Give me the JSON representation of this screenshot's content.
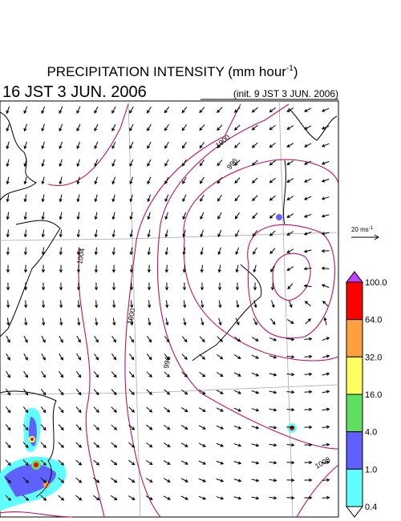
{
  "title": {
    "text": "PRECIPITATION INTENSITY (mm hour",
    "superscript": "-1",
    "suffix": ")"
  },
  "valid_time": "16 JST 3 JUN. 2006",
  "init_time": "(init. 9 JST 3 JUN. 2006)",
  "reference_vector": {
    "text": "20 ms",
    "superscript": "-1"
  },
  "contour_labels": [
    "1000",
    "996",
    "1004",
    "1000",
    "996",
    "1008"
  ],
  "colorbar": {
    "labels": [
      "100.0",
      "64.0",
      "32.0",
      "16.0",
      "4.0",
      "1.0",
      "0.4"
    ],
    "colors": [
      "#ff0000",
      "#ffa040",
      "#ffff60",
      "#60e060",
      "#6060ff",
      "#60ffff"
    ]
  }
}
